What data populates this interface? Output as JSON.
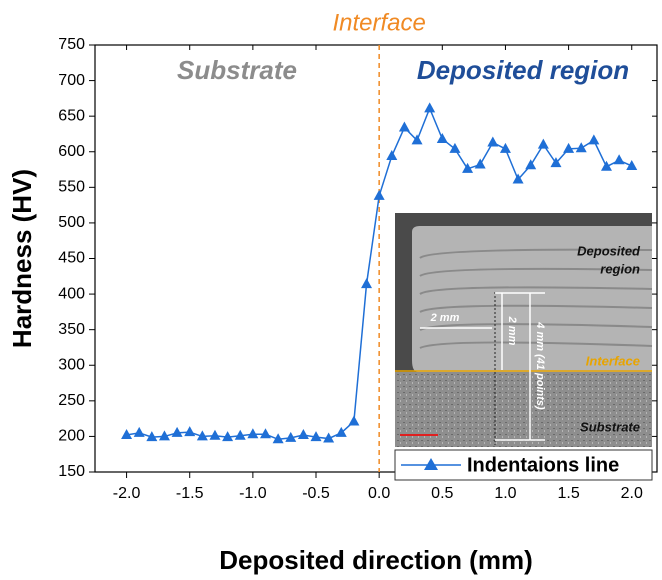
{
  "chart_data": {
    "type": "line",
    "x_label": "Deposited direction (mm)",
    "y_label": "Hardness (HV)",
    "x": [
      -2.0,
      -1.9,
      -1.8,
      -1.7,
      -1.6,
      -1.5,
      -1.4,
      -1.3,
      -1.2,
      -1.1,
      -1.0,
      -0.9,
      -0.8,
      -0.7,
      -0.6,
      -0.5,
      -0.4,
      -0.3,
      -0.2,
      -0.1,
      0.0,
      0.1,
      0.2,
      0.3,
      0.4,
      0.5,
      0.6,
      0.7,
      0.8,
      0.9,
      1.0,
      1.1,
      1.2,
      1.3,
      1.4,
      1.5,
      1.6,
      1.7,
      1.8,
      1.9,
      2.0
    ],
    "series": [
      {
        "name": "Indentaions line",
        "color": "#1f6fd6",
        "values": [
          202,
          205,
          199,
          200,
          205,
          206,
          200,
          201,
          199,
          201,
          203,
          203,
          196,
          198,
          202,
          199,
          197,
          205,
          221,
          414,
          538,
          594,
          634,
          616,
          661,
          618,
          604,
          576,
          582,
          613,
          604,
          561,
          581,
          610,
          584,
          604,
          605,
          616,
          579,
          588,
          580
        ]
      }
    ],
    "xlim": [
      -2.25,
      2.2
    ],
    "ylim": [
      150,
      750
    ],
    "xticks": [
      {
        "value": -2.0,
        "label": "-2.0"
      },
      -1.5,
      {
        "value": -1.0,
        "label": "-1.0"
      },
      -0.5,
      {
        "value": 0.0,
        "label": "0.0"
      },
      0.5,
      {
        "value": 1.0,
        "label": "1.0"
      },
      1.5,
      {
        "value": 2.0,
        "label": "2.0"
      }
    ],
    "yticks": [
      150,
      200,
      250,
      300,
      350,
      400,
      450,
      500,
      550,
      600,
      650,
      700,
      750
    ],
    "interface_x": 0,
    "annotations": {
      "interface": "Interface",
      "substrate": "Substrate",
      "deposited": "Deposited region"
    },
    "inset_labels": [
      "Deposited",
      "region",
      "2 mm",
      "2 mm",
      "4 mm (41 points)",
      "Interface",
      "Substrate"
    ],
    "legend": "lower right"
  }
}
